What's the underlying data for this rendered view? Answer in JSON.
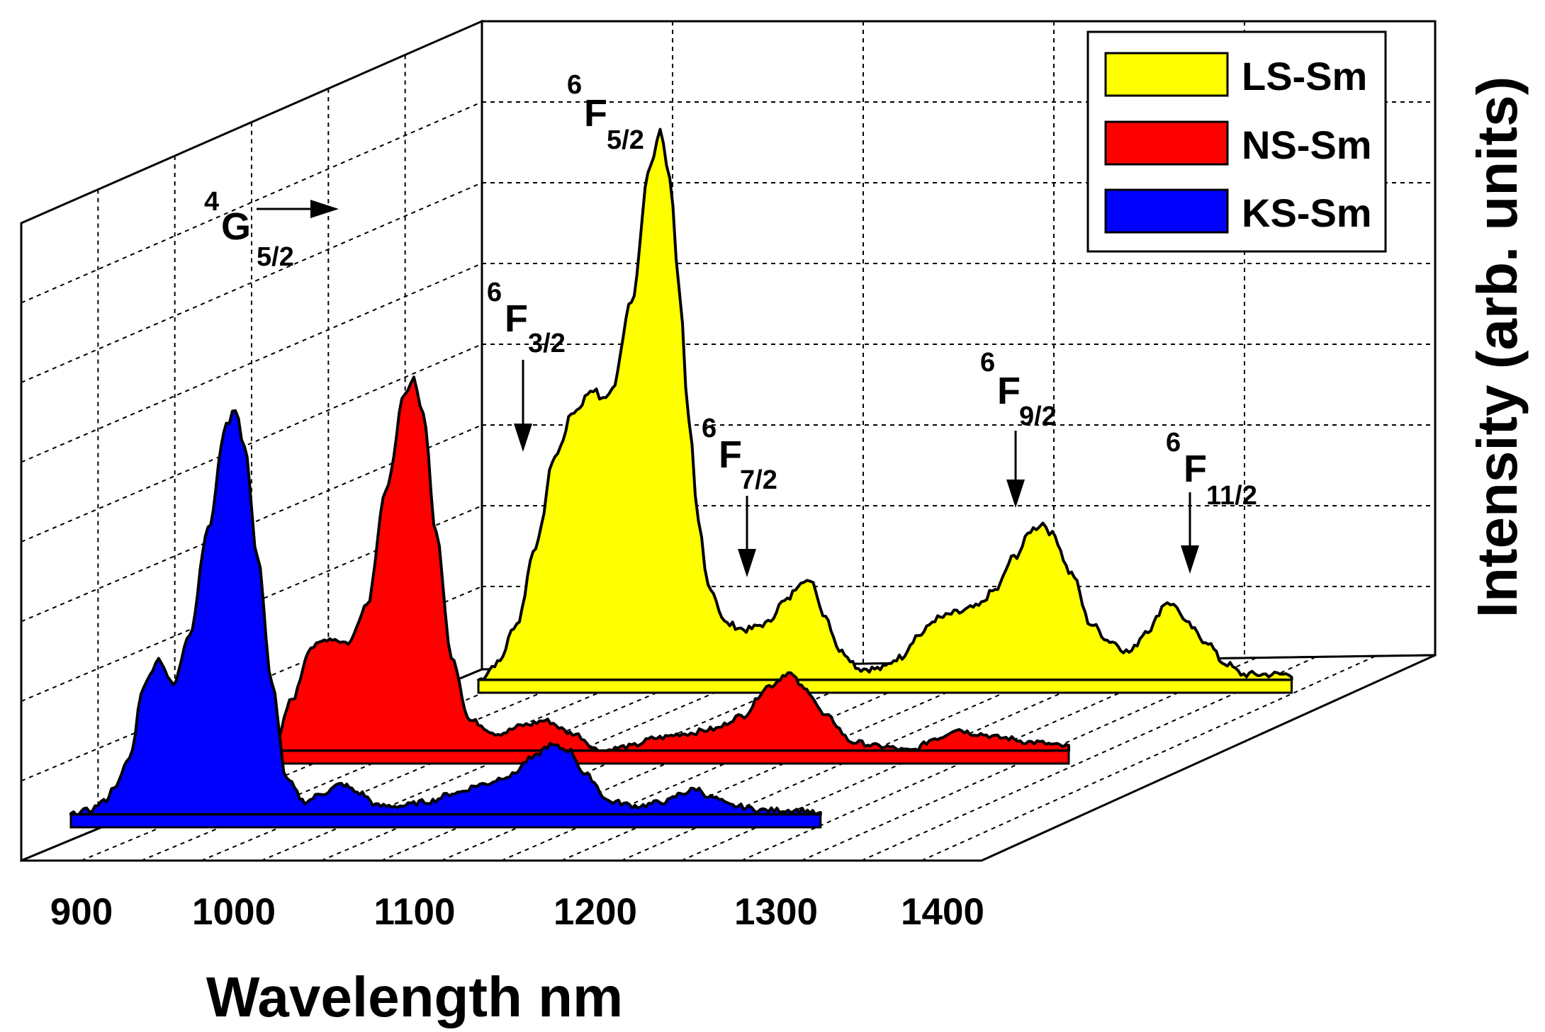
{
  "chart_data": {
    "type": "area",
    "style": "3d-waterfall",
    "title": "",
    "xlabel": "Wavelength nm",
    "ylabel": "Intensity (arb. units)",
    "xlim": [
      900,
      1400
    ],
    "x_ticks": [
      "900",
      "1000",
      "1100",
      "1200",
      "1300",
      "1400"
    ],
    "grid": true,
    "legend_position": "top-right",
    "series": [
      {
        "name": "LS-Sm",
        "color": "#ffff00",
        "depth": 2,
        "points": [
          [
            950,
            0.0
          ],
          [
            960,
            0.03
          ],
          [
            970,
            0.1
          ],
          [
            980,
            0.24
          ],
          [
            990,
            0.4
          ],
          [
            1000,
            0.48
          ],
          [
            1010,
            0.52
          ],
          [
            1015,
            0.5
          ],
          [
            1020,
            0.52
          ],
          [
            1030,
            0.68
          ],
          [
            1040,
            0.92
          ],
          [
            1045,
            0.98
          ],
          [
            1050,
            0.9
          ],
          [
            1055,
            0.7
          ],
          [
            1060,
            0.46
          ],
          [
            1065,
            0.28
          ],
          [
            1070,
            0.17
          ],
          [
            1080,
            0.1
          ],
          [
            1090,
            0.09
          ],
          [
            1100,
            0.1
          ],
          [
            1110,
            0.14
          ],
          [
            1120,
            0.18
          ],
          [
            1125,
            0.17
          ],
          [
            1130,
            0.12
          ],
          [
            1140,
            0.05
          ],
          [
            1150,
            0.02
          ],
          [
            1160,
            0.02
          ],
          [
            1170,
            0.04
          ],
          [
            1180,
            0.08
          ],
          [
            1190,
            0.11
          ],
          [
            1200,
            0.12
          ],
          [
            1210,
            0.13
          ],
          [
            1220,
            0.16
          ],
          [
            1230,
            0.22
          ],
          [
            1240,
            0.27
          ],
          [
            1245,
            0.28
          ],
          [
            1250,
            0.26
          ],
          [
            1260,
            0.19
          ],
          [
            1270,
            0.1
          ],
          [
            1280,
            0.07
          ],
          [
            1290,
            0.05
          ],
          [
            1300,
            0.09
          ],
          [
            1310,
            0.14
          ],
          [
            1315,
            0.13
          ],
          [
            1320,
            0.1
          ],
          [
            1330,
            0.07
          ],
          [
            1340,
            0.03
          ],
          [
            1350,
            0.01
          ],
          [
            1360,
            0.01
          ],
          [
            1375,
            0.01
          ]
        ]
      },
      {
        "name": "NS-Sm",
        "color": "#ff0000",
        "depth": 1,
        "points": [
          [
            925,
            0.0
          ],
          [
            935,
            0.12
          ],
          [
            945,
            0.24
          ],
          [
            955,
            0.26
          ],
          [
            965,
            0.25
          ],
          [
            975,
            0.34
          ],
          [
            985,
            0.6
          ],
          [
            995,
            0.82
          ],
          [
            1000,
            0.86
          ],
          [
            1005,
            0.78
          ],
          [
            1012,
            0.5
          ],
          [
            1020,
            0.22
          ],
          [
            1030,
            0.07
          ],
          [
            1045,
            0.04
          ],
          [
            1060,
            0.06
          ],
          [
            1070,
            0.07
          ],
          [
            1085,
            0.04
          ],
          [
            1100,
            0.0
          ],
          [
            1115,
            0.01
          ],
          [
            1130,
            0.03
          ],
          [
            1145,
            0.04
          ],
          [
            1160,
            0.05
          ],
          [
            1175,
            0.08
          ],
          [
            1190,
            0.15
          ],
          [
            1200,
            0.18
          ],
          [
            1210,
            0.14
          ],
          [
            1220,
            0.08
          ],
          [
            1235,
            0.02
          ],
          [
            1250,
            0.01
          ],
          [
            1265,
            0.0
          ],
          [
            1280,
            0.03
          ],
          [
            1290,
            0.05
          ],
          [
            1300,
            0.04
          ],
          [
            1315,
            0.03
          ],
          [
            1330,
            0.02
          ],
          [
            1350,
            0.01
          ]
        ]
      },
      {
        "name": "KS-Sm",
        "color": "#0000ff",
        "depth": 0,
        "points": [
          [
            900,
            0.0
          ],
          [
            910,
            0.01
          ],
          [
            918,
            0.03
          ],
          [
            925,
            0.07
          ],
          [
            932,
            0.13
          ],
          [
            940,
            0.3
          ],
          [
            948,
            0.36
          ],
          [
            956,
            0.3
          ],
          [
            965,
            0.42
          ],
          [
            975,
            0.66
          ],
          [
            985,
            0.9
          ],
          [
            990,
            0.94
          ],
          [
            995,
            0.85
          ],
          [
            1002,
            0.6
          ],
          [
            1010,
            0.3
          ],
          [
            1018,
            0.08
          ],
          [
            1028,
            0.03
          ],
          [
            1038,
            0.05
          ],
          [
            1048,
            0.07
          ],
          [
            1058,
            0.05
          ],
          [
            1068,
            0.02
          ],
          [
            1080,
            0.02
          ],
          [
            1095,
            0.03
          ],
          [
            1110,
            0.05
          ],
          [
            1125,
            0.07
          ],
          [
            1140,
            0.09
          ],
          [
            1152,
            0.13
          ],
          [
            1162,
            0.16
          ],
          [
            1172,
            0.15
          ],
          [
            1182,
            0.09
          ],
          [
            1195,
            0.03
          ],
          [
            1210,
            0.02
          ],
          [
            1225,
            0.03
          ],
          [
            1235,
            0.05
          ],
          [
            1242,
            0.06
          ],
          [
            1250,
            0.04
          ],
          [
            1262,
            0.02
          ],
          [
            1280,
            0.01
          ],
          [
            1300,
            0.01
          ],
          [
            1310,
            0.0
          ]
        ]
      }
    ],
    "annotations": [
      {
        "base": "4",
        "letter": "G",
        "sub": "5/2"
      },
      {
        "base": "6",
        "letter": "F",
        "sub": "5/2"
      },
      {
        "base": "6",
        "letter": "F",
        "sub": "3/2"
      },
      {
        "base": "6",
        "letter": "F",
        "sub": "7/2"
      },
      {
        "base": "6",
        "letter": "F",
        "sub": "9/2"
      },
      {
        "base": "6",
        "letter": "F",
        "sub": "11/2"
      }
    ]
  }
}
